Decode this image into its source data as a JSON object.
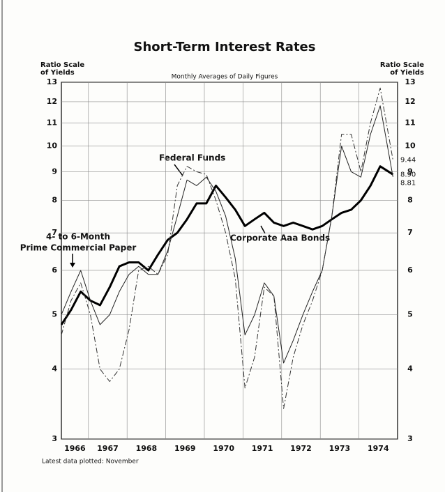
{
  "chart_data": {
    "type": "line",
    "title": "Short-Term Interest Rates",
    "subtitle": "Monthly Averages of Daily Figures",
    "y_label_lines": [
      "Ratio Scale",
      "of Yields"
    ],
    "y2_label_lines": [
      "Ratio Scale",
      "of Yields"
    ],
    "footnote": "Latest data plotted: November",
    "log_scale": true,
    "grid": true,
    "xlim": [
      1966.3,
      1975.0
    ],
    "xticks": [
      {
        "value": 1966,
        "label": "1966"
      },
      {
        "value": 1967,
        "label": "1967"
      },
      {
        "value": 1968,
        "label": "1968"
      },
      {
        "value": 1969,
        "label": "1969"
      },
      {
        "value": 1970,
        "label": "1970"
      },
      {
        "value": 1971,
        "label": "1971"
      },
      {
        "value": 1972,
        "label": "1972"
      },
      {
        "value": 1973,
        "label": "1973"
      },
      {
        "value": 1974,
        "label": "1974"
      }
    ],
    "ylim": [
      3,
      13
    ],
    "yticks": [
      3,
      4,
      5,
      6,
      7,
      8,
      9,
      10,
      11,
      12,
      13
    ],
    "x": [
      1966.3,
      1966.55,
      1966.8,
      1967.05,
      1967.3,
      1967.55,
      1967.8,
      1968.05,
      1968.3,
      1968.55,
      1968.8,
      1969.05,
      1969.3,
      1969.55,
      1969.8,
      1970.05,
      1970.3,
      1970.55,
      1970.8,
      1971.05,
      1971.3,
      1971.55,
      1971.8,
      1972.05,
      1972.3,
      1972.55,
      1972.8,
      1973.05,
      1973.3,
      1973.55,
      1973.8,
      1974.05,
      1974.3,
      1974.55,
      1974.88
    ],
    "series": [
      {
        "name": "Corporate Aaa Bonds",
        "color": "#000000",
        "weight": "heavy",
        "line_style": "solid",
        "end_label": "8.90",
        "values": [
          4.8,
          5.1,
          5.5,
          5.3,
          5.2,
          5.6,
          6.1,
          6.2,
          6.2,
          6.0,
          6.4,
          6.8,
          7.0,
          7.4,
          7.9,
          7.9,
          8.5,
          8.1,
          7.7,
          7.2,
          7.4,
          7.6,
          7.3,
          7.2,
          7.3,
          7.2,
          7.1,
          7.2,
          7.4,
          7.6,
          7.7,
          8.0,
          8.5,
          9.2,
          8.9
        ]
      },
      {
        "name": "4- to 6-Month Prime Commercial Paper",
        "color": "#222222",
        "weight": "light",
        "line_style": "solid",
        "end_label": "8.81",
        "values": [
          5.0,
          5.5,
          6.0,
          5.3,
          4.8,
          5.0,
          5.5,
          5.9,
          6.1,
          5.9,
          5.9,
          6.5,
          7.5,
          8.7,
          8.5,
          8.8,
          8.3,
          7.5,
          6.3,
          4.6,
          5.0,
          5.7,
          5.4,
          4.1,
          4.5,
          5.0,
          5.5,
          6.0,
          7.5,
          10.0,
          9.0,
          8.8,
          10.5,
          11.8,
          8.81
        ]
      },
      {
        "name": "Federal Funds",
        "color": "#333333",
        "weight": "light",
        "line_style": "dashdot",
        "end_label": "9.44",
        "values": [
          4.6,
          5.3,
          5.7,
          5.0,
          4.0,
          3.8,
          4.0,
          4.7,
          6.0,
          6.1,
          5.9,
          6.4,
          8.5,
          9.2,
          9.0,
          8.9,
          8.0,
          7.0,
          5.8,
          3.7,
          4.2,
          5.6,
          5.4,
          3.4,
          4.2,
          4.8,
          5.3,
          6.0,
          7.5,
          10.5,
          10.5,
          9.0,
          11.0,
          12.7,
          9.44
        ]
      }
    ]
  }
}
